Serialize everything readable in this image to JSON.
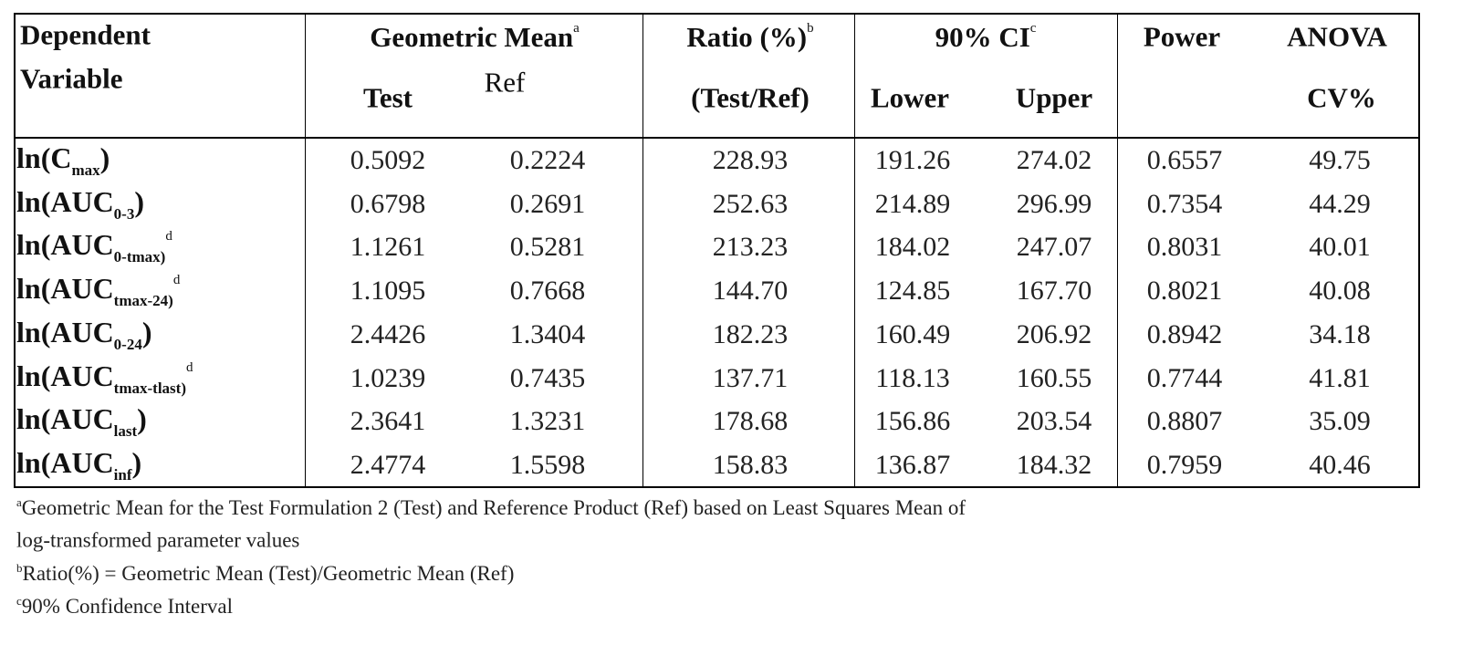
{
  "table": {
    "header": {
      "variable": [
        "Dependent",
        "Variable"
      ],
      "geometric_mean": {
        "text": "Geometric Mean",
        "note": "a"
      },
      "test": "Test",
      "ref": "Ref",
      "ratio": {
        "text": "Ratio (%)",
        "note": "b"
      },
      "ratio_sub": "(Test/Ref)",
      "ci": {
        "text": "90% CI",
        "note": "c"
      },
      "lower": "Lower",
      "upper": "Upper",
      "power": "Power",
      "anova": "ANOVA",
      "cv": "CV%"
    },
    "rows": [
      {
        "label": {
          "main": "ln(C",
          "sub": "max",
          "tail": ")"
        },
        "values": [
          "0.5092",
          "0.2224",
          "228.93",
          "191.26",
          "274.02",
          "0.6557",
          "49.75"
        ]
      },
      {
        "label": {
          "main": "ln(AUC",
          "sub": "0-3",
          "tail": ")"
        },
        "values": [
          "0.6798",
          "0.2691",
          "252.63",
          "214.89",
          "296.99",
          "0.7354",
          "44.29"
        ]
      },
      {
        "label": {
          "main": "ln(AUC",
          "sub": "0-tmax)",
          "sup": "d"
        },
        "values": [
          "1.1261",
          "0.5281",
          "213.23",
          "184.02",
          "247.07",
          "0.8031",
          "40.01"
        ]
      },
      {
        "label": {
          "main": "ln(AUC",
          "sub": "tmax-24)",
          "sup": "d"
        },
        "values": [
          "1.1095",
          "0.7668",
          "144.70",
          "124.85",
          "167.70",
          "0.8021",
          "40.08"
        ]
      },
      {
        "label": {
          "main": "ln(AUC",
          "sub": "0-24",
          "tail": ")"
        },
        "values": [
          "2.4426",
          "1.3404",
          "182.23",
          "160.49",
          "206.92",
          "0.8942",
          "34.18"
        ]
      },
      {
        "label": {
          "main": "ln(AUC",
          "sub": "tmax-tlast)",
          "sup": "d"
        },
        "values": [
          "1.0239",
          "0.7435",
          "137.71",
          "118.13",
          "160.55",
          "0.7744",
          "41.81"
        ]
      },
      {
        "label": {
          "main": "ln(AUC",
          "sub": "last",
          "tail": ")"
        },
        "values": [
          "2.3641",
          "1.3231",
          "178.68",
          "156.86",
          "203.54",
          "0.8807",
          "35.09"
        ]
      },
      {
        "label": {
          "main": "ln(AUC",
          "sub": "inf",
          "tail": ")"
        },
        "values": [
          "2.4774",
          "1.5598",
          "158.83",
          "136.87",
          "184.32",
          "0.7959",
          "40.46"
        ]
      }
    ]
  },
  "footnotes": [
    {
      "mark": "a",
      "lines": [
        "Geometric Mean for the Test Formulation 2 (Test) and Reference Product (Ref) based on Least Squares Mean of",
        "log-transformed parameter values"
      ]
    },
    {
      "mark": "b",
      "lines": [
        "Ratio(%) = Geometric Mean (Test)/Geometric Mean (Ref)"
      ]
    },
    {
      "mark": "c",
      "lines": [
        "90% Confidence Interval"
      ]
    }
  ]
}
